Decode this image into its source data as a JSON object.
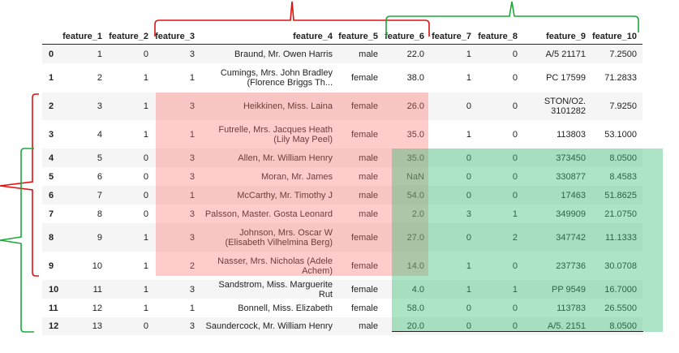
{
  "colors": {
    "red_highlight": "#ff6e6e",
    "green_highlight": "#3cbe78",
    "red_bracket": "#e01010",
    "green_bracket": "#1aa83a"
  },
  "table": {
    "columns": [
      "",
      "feature_1",
      "feature_2",
      "feature_3",
      "feature_4",
      "feature_5",
      "feature_6",
      "feature_7",
      "feature_8",
      "feature_9",
      "feature_10"
    ],
    "rows": [
      [
        "0",
        "1",
        "0",
        "3",
        "Braund, Mr. Owen Harris",
        "male",
        "22.0",
        "1",
        "0",
        "A/5 21171",
        "7.2500"
      ],
      [
        "1",
        "2",
        "1",
        "1",
        "Cumings, Mrs. John Bradley (Florence Briggs Th...",
        "female",
        "38.0",
        "1",
        "0",
        "PC 17599",
        "71.2833"
      ],
      [
        "2",
        "3",
        "1",
        "3",
        "Heikkinen, Miss. Laina",
        "female",
        "26.0",
        "0",
        "0",
        "STON/O2. 3101282",
        "7.9250"
      ],
      [
        "3",
        "4",
        "1",
        "1",
        "Futrelle, Mrs. Jacques Heath (Lily May Peel)",
        "female",
        "35.0",
        "1",
        "0",
        "113803",
        "53.1000"
      ],
      [
        "4",
        "5",
        "0",
        "3",
        "Allen, Mr. William Henry",
        "male",
        "35.0",
        "0",
        "0",
        "373450",
        "8.0500"
      ],
      [
        "5",
        "6",
        "0",
        "3",
        "Moran, Mr. James",
        "male",
        "NaN",
        "0",
        "0",
        "330877",
        "8.4583"
      ],
      [
        "6",
        "7",
        "0",
        "1",
        "McCarthy, Mr. Timothy J",
        "male",
        "54.0",
        "0",
        "0",
        "17463",
        "51.8625"
      ],
      [
        "7",
        "8",
        "0",
        "3",
        "Palsson, Master. Gosta Leonard",
        "male",
        "2.0",
        "3",
        "1",
        "349909",
        "21.0750"
      ],
      [
        "8",
        "9",
        "1",
        "3",
        "Johnson, Mrs. Oscar W (Elisabeth Vilhelmina Berg)",
        "female",
        "27.0",
        "0",
        "2",
        "347742",
        "11.1333"
      ],
      [
        "9",
        "10",
        "1",
        "2",
        "Nasser, Mrs. Nicholas (Adele Achem)",
        "female",
        "14.0",
        "1",
        "0",
        "237736",
        "30.0708"
      ],
      [
        "10",
        "11",
        "1",
        "3",
        "Sandstrom, Miss. Marguerite Rut",
        "female",
        "4.0",
        "1",
        "1",
        "PP 9549",
        "16.7000"
      ],
      [
        "11",
        "12",
        "1",
        "1",
        "Bonnell, Miss. Elizabeth",
        "female",
        "58.0",
        "0",
        "0",
        "113783",
        "26.5500"
      ],
      [
        "12",
        "13",
        "0",
        "3",
        "Saundercock, Mr. William Henry",
        "male",
        "20.0",
        "0",
        "0",
        "A/5. 2151",
        "8.0500"
      ]
    ]
  }
}
